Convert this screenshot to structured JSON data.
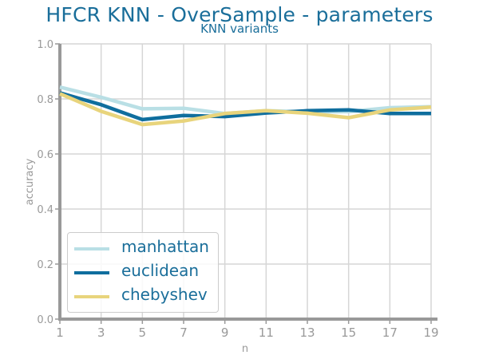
{
  "chart_data": {
    "type": "line",
    "title": "HFCR KNN - OverSample - parameters",
    "subtitle": "KNN variants",
    "xlabel": "n",
    "ylabel": "accuracy",
    "x": [
      1,
      3,
      5,
      7,
      9,
      11,
      13,
      15,
      17,
      19
    ],
    "xlim": [
      1,
      19
    ],
    "ylim": [
      0.0,
      1.0
    ],
    "xticks": [
      "1",
      "3",
      "5",
      "7",
      "9",
      "11",
      "13",
      "15",
      "17",
      "19"
    ],
    "yticks": [
      "0.0",
      "0.2",
      "0.4",
      "0.6",
      "0.8",
      "1.0"
    ],
    "grid": true,
    "legend_position": "lower-left",
    "series": [
      {
        "name": "manhattan",
        "color": "#b9dfe5",
        "values": [
          0.843,
          0.806,
          0.764,
          0.766,
          0.747,
          0.757,
          0.753,
          0.754,
          0.768,
          0.772
        ]
      },
      {
        "name": "euclidean",
        "color": "#0f6e9e",
        "values": [
          0.822,
          0.779,
          0.725,
          0.74,
          0.736,
          0.749,
          0.757,
          0.76,
          0.747,
          0.747
        ]
      },
      {
        "name": "chebyshev",
        "color": "#e8d47c",
        "values": [
          0.819,
          0.755,
          0.707,
          0.72,
          0.747,
          0.757,
          0.748,
          0.732,
          0.76,
          0.77
        ]
      }
    ]
  }
}
